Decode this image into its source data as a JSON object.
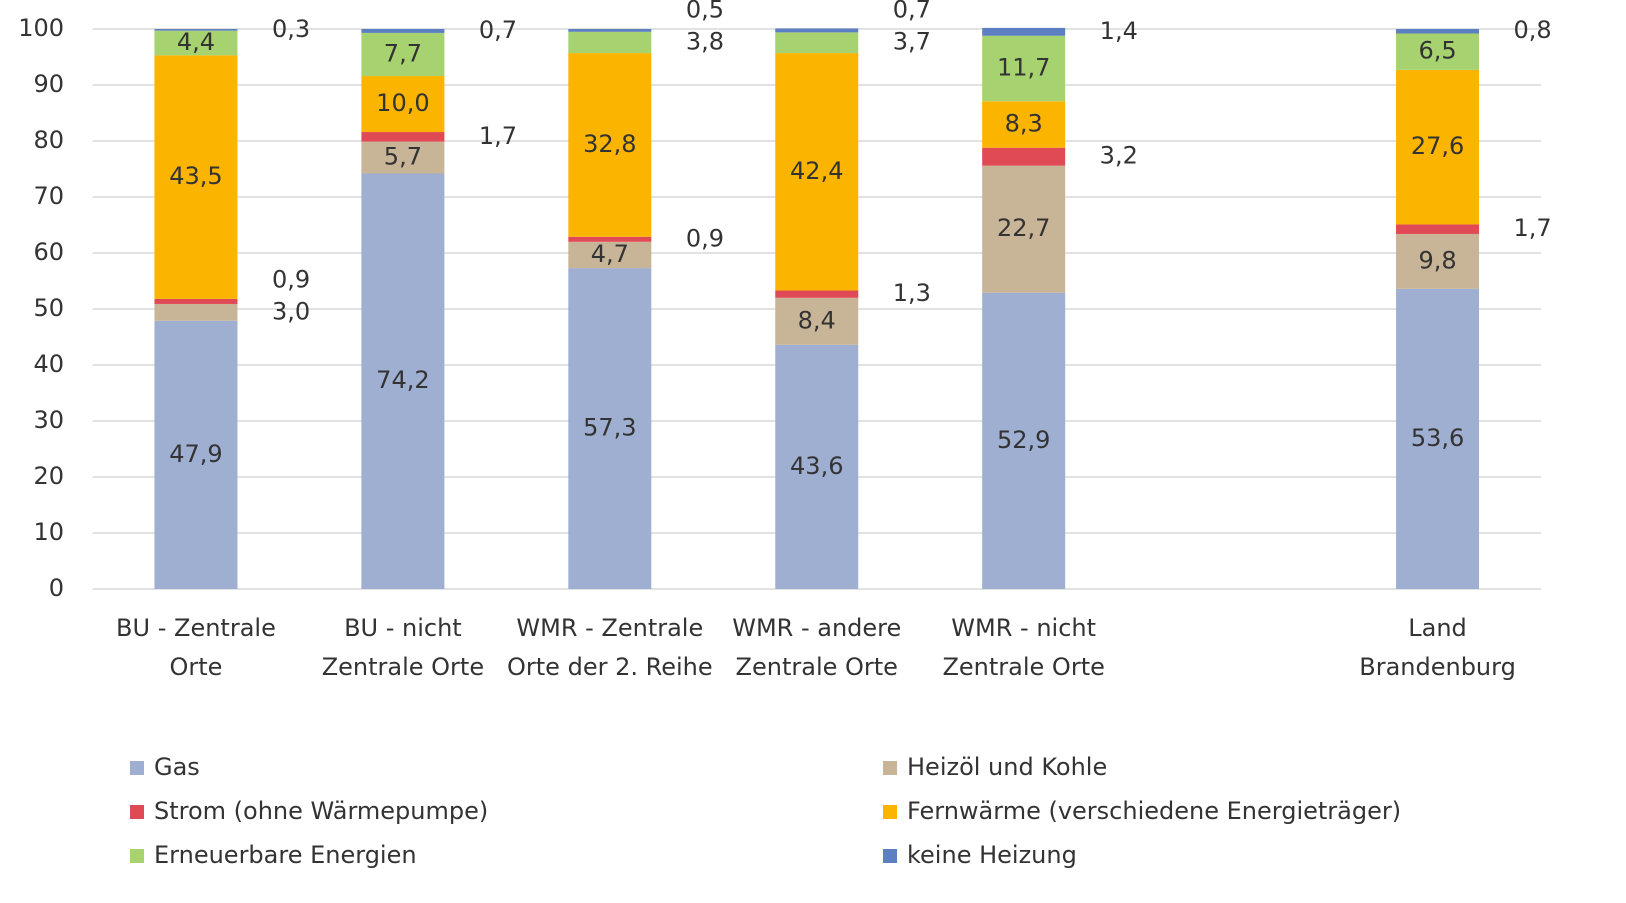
{
  "chart_data": {
    "type": "stacked_bar",
    "categories": [
      "BU - Zentrale Orte",
      "BU - nicht Zentrale Orte",
      "WMR - Zentrale Orte der 2. Reihe",
      "WMR - andere Zentrale Orte",
      "WMR - nicht Zentrale Orte",
      null,
      "Land Brandenburg"
    ],
    "series": [
      {
        "name": "Gas",
        "color": "#9fafd1",
        "values": [
          47.9,
          74.2,
          57.3,
          43.6,
          52.9,
          null,
          53.6
        ],
        "value_labels": [
          "47,9",
          "74,2",
          "57,3",
          "43,6",
          "52,9",
          null,
          "53,6"
        ]
      },
      {
        "name": "Heizöl und Kohle",
        "color": "#c8b496",
        "values": [
          3.0,
          5.7,
          4.7,
          8.4,
          22.7,
          null,
          9.8
        ],
        "value_labels": [
          "3,0",
          "5,7",
          "4,7",
          "8,4",
          "22,7",
          null,
          "9,8"
        ]
      },
      {
        "name": "Strom (ohne Wärmepumpe)",
        "color": "#e04a55",
        "values": [
          0.9,
          1.7,
          0.9,
          1.3,
          3.2,
          null,
          1.7
        ],
        "value_labels": [
          "0,9",
          "1,7",
          "0,9",
          "1,3",
          "3,2",
          null,
          "1,7"
        ]
      },
      {
        "name": "Fernwärme (verschiedene Energieträger)",
        "color": "#fbb400",
        "values": [
          43.5,
          10.0,
          32.8,
          42.4,
          8.3,
          null,
          27.6
        ],
        "value_labels": [
          "43,5",
          "10,0",
          "32,8",
          "42,4",
          "8,3",
          null,
          "27,6"
        ]
      },
      {
        "name": "Erneuerbare Energien",
        "color": "#a6d26f",
        "values": [
          4.4,
          7.7,
          3.8,
          3.7,
          11.7,
          null,
          6.5
        ],
        "value_labels": [
          "4,4",
          "7,7",
          "3,8",
          "3,7",
          "11,7",
          null,
          "6,5"
        ]
      },
      {
        "name": "keine Heizung",
        "color": "#5b7fc1",
        "values": [
          0.3,
          0.7,
          0.5,
          0.7,
          1.4,
          null,
          0.8
        ],
        "value_labels": [
          "0,3",
          "0,7",
          "0,5",
          "0,7",
          "1,4",
          null,
          "0,8"
        ]
      }
    ],
    "ylim": [
      0,
      100
    ],
    "yticks": [
      0,
      10,
      20,
      30,
      40,
      50,
      60,
      70,
      80,
      90,
      100
    ],
    "grid": true
  }
}
